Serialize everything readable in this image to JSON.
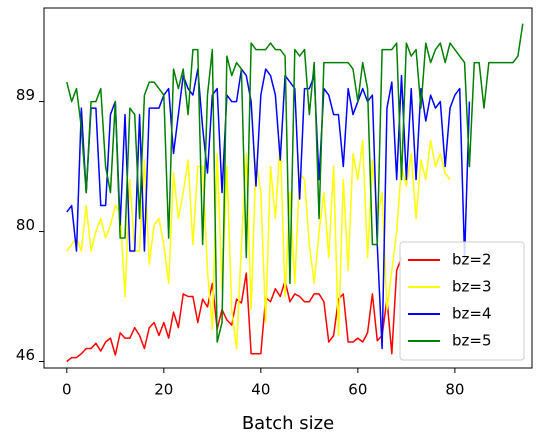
{
  "chart_data": {
    "type": "line",
    "xlabel": "Batch size",
    "x": [
      0,
      1,
      2,
      3,
      4,
      5,
      6,
      7,
      8,
      9,
      10,
      11,
      12,
      13,
      14,
      15,
      16,
      17,
      18,
      19,
      20,
      21,
      22,
      23,
      24,
      25,
      26,
      27,
      28,
      29,
      30,
      31,
      32,
      33,
      34,
      35,
      36,
      37,
      38,
      39,
      40,
      41,
      42,
      43,
      44,
      45,
      46,
      47,
      48,
      49,
      50,
      51,
      52,
      53,
      54,
      55,
      56,
      57,
      58,
      59,
      60,
      61,
      62,
      63,
      64,
      65,
      66,
      67,
      68,
      69,
      70,
      71,
      72,
      73,
      74,
      75,
      76,
      77,
      78,
      79,
      80,
      81,
      82,
      83,
      84,
      85,
      86,
      87,
      88,
      89,
      90,
      91,
      92,
      93,
      94
    ],
    "series": [
      {
        "name": "bz=2",
        "color": "#ff0000",
        "values": [
          0.0,
          0.03,
          0.03,
          0.06,
          0.1,
          0.1,
          0.14,
          0.08,
          0.15,
          0.18,
          0.05,
          0.22,
          0.18,
          0.18,
          0.26,
          0.2,
          0.1,
          0.26,
          0.3,
          0.2,
          0.3,
          0.18,
          0.38,
          0.26,
          0.52,
          0.5,
          0.5,
          0.3,
          0.48,
          0.42,
          0.6,
          0.25,
          0.4,
          0.32,
          0.28,
          0.48,
          0.45,
          0.68,
          0.06,
          0.06,
          0.06,
          0.49,
          0.46,
          0.56,
          0.5,
          0.62,
          0.46,
          0.52,
          0.5,
          0.46,
          0.46,
          0.52,
          0.52,
          0.46,
          0.15,
          0.2,
          0.48,
          0.52,
          0.15,
          0.15,
          0.18,
          0.15,
          0.22,
          0.52,
          0.16,
          0.2,
          0.48,
          0.06,
          0.7,
          0.8,
          null,
          null,
          null,
          null,
          null,
          null,
          null,
          null,
          null,
          null,
          null,
          null,
          null,
          null,
          null,
          null,
          null,
          null,
          null,
          null,
          null,
          null,
          null,
          null,
          null
        ]
      },
      {
        "name": "bz=3",
        "color": "#ffff00",
        "values": [
          0.85,
          0.9,
          0.95,
          0.85,
          1.2,
          0.85,
          1.0,
          1.1,
          0.95,
          1.05,
          1.2,
          1.15,
          0.5,
          1.4,
          0.85,
          0.85,
          1.55,
          0.75,
          1.05,
          1.1,
          0.9,
          0.6,
          1.45,
          1.1,
          1.3,
          1.55,
          0.9,
          1.5,
          1.5,
          0.7,
          0.25,
          1.6,
          0.55,
          1.5,
          0.4,
          0.1,
          0.9,
          1.6,
          0.4,
          1.55,
          1.3,
          0.3,
          1.5,
          1.1,
          1.7,
          0.5,
          1.3,
          0.6,
          1.45,
          1.4,
          0.9,
          0.6,
          1.0,
          1.3,
          0.8,
          1.5,
          0.2,
          1.4,
          0.7,
          1.6,
          1.4,
          1.7,
          0.8,
          1.55,
          1.1,
          1.3,
          0.4,
          0.7,
          1.0,
          1.5,
          1.35,
          1.6,
          1.1,
          1.55,
          1.4,
          1.7,
          1.5,
          1.6,
          1.45,
          1.4,
          null,
          null,
          null,
          null,
          null,
          null,
          null,
          null,
          null,
          null,
          null,
          null,
          null,
          null,
          null
        ]
      },
      {
        "name": "bz=4",
        "color": "#0000ff",
        "values": [
          1.15,
          1.2,
          0.85,
          1.95,
          1.3,
          1.95,
          1.95,
          1.2,
          1.2,
          1.9,
          2.0,
          1.05,
          1.9,
          0.85,
          0.85,
          1.9,
          0.85,
          1.95,
          1.95,
          1.95,
          2.05,
          2.1,
          1.6,
          1.9,
          2.2,
          2.1,
          2.05,
          2.25,
          1.8,
          1.45,
          2.05,
          2.1,
          1.3,
          2.05,
          2.0,
          2.0,
          2.25,
          2.2,
          2.0,
          1.35,
          2.05,
          2.25,
          2.2,
          2.05,
          1.55,
          2.2,
          2.15,
          2.1,
          1.25,
          2.1,
          2.1,
          2.2,
          1.4,
          2.1,
          2.05,
          1.9,
          1.9,
          1.5,
          2.1,
          1.9,
          2.0,
          2.1,
          2.0,
          2.05,
          0.9,
          0.1,
          1.95,
          2.15,
          1.4,
          2.2,
          1.4,
          2.1,
          1.4,
          2.1,
          1.85,
          2.05,
          1.95,
          2.0,
          1.5,
          1.95,
          2.05,
          2.1,
          0.8,
          2.0,
          null,
          null,
          null,
          null,
          null,
          null,
          null,
          null,
          null,
          null,
          null
        ]
      },
      {
        "name": "bz=5",
        "color": "#008000",
        "values": [
          2.15,
          2.0,
          2.1,
          1.8,
          1.3,
          2.0,
          2.0,
          2.1,
          1.5,
          1.3,
          2.0,
          0.95,
          0.95,
          1.95,
          1.9,
          1.1,
          2.05,
          2.15,
          2.15,
          2.1,
          2.05,
          0.95,
          2.25,
          2.1,
          2.25,
          1.9,
          2.4,
          2.4,
          0.9,
          2.05,
          2.4,
          0.15,
          0.3,
          2.35,
          2.2,
          2.3,
          2.25,
          0.8,
          2.45,
          2.4,
          2.4,
          2.4,
          2.45,
          2.4,
          2.4,
          2.35,
          0.6,
          2.4,
          2.35,
          2.4,
          1.9,
          2.3,
          1.1,
          2.3,
          2.3,
          2.3,
          2.3,
          2.3,
          2.3,
          2.25,
          2.0,
          2.3,
          2.1,
          0.9,
          0.9,
          2.4,
          2.4,
          2.4,
          2.45,
          1.4,
          2.45,
          2.35,
          2.4,
          1.95,
          2.45,
          2.3,
          2.4,
          2.45,
          2.3,
          2.45,
          2.4,
          2.35,
          2.3,
          1.5,
          2.3,
          2.3,
          1.95,
          2.3,
          2.3,
          2.3,
          2.3,
          2.3,
          2.3,
          2.35,
          2.6
        ]
      }
    ],
    "xlim": [
      -4.7,
      95.9
    ],
    "xticks": [
      0,
      20,
      40,
      60,
      80
    ],
    "ylim": [
      -0.05,
      2.72
    ],
    "yticks": [
      {
        "value": 0,
        "label": "46"
      },
      {
        "value": 1,
        "label": "80"
      },
      {
        "value": 2,
        "label": "89"
      }
    ],
    "legend": "lower right"
  }
}
